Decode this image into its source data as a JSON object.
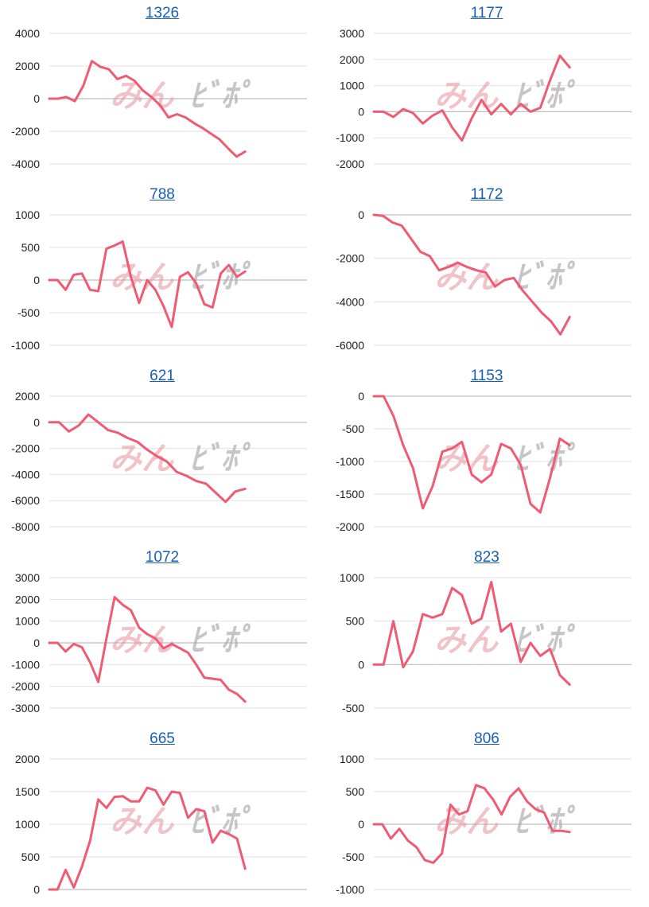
{
  "colors": {
    "line": "#ef5b73",
    "title": "#1a5fb4",
    "grid": "#e2e2e2",
    "zero": "#bdbdbd"
  },
  "watermark": {
    "left_text": "みん",
    "right_text": "ﾋﾞﾎﾟ"
  },
  "chart_data": [
    {
      "type": "line",
      "title": "1326",
      "ylim": [
        -4000,
        4000
      ],
      "ticks": [
        4000,
        2000,
        0,
        -2000,
        -4000
      ],
      "yticks_labels": [
        "4000",
        "2000",
        "0",
        "-2000",
        "-4000"
      ],
      "grid": true,
      "series": [
        {
          "values": [
            0,
            0,
            100,
            -150,
            800,
            2300,
            1950,
            1800,
            1200,
            1400,
            1100,
            500,
            100,
            -400,
            -1150,
            -950,
            -1150,
            -1500,
            -1800,
            -2150,
            -2500,
            -3050,
            -3550,
            -3250
          ]
        }
      ]
    },
    {
      "type": "line",
      "title": "1177",
      "ylim": [
        -2000,
        3000
      ],
      "ticks": [
        3000,
        2000,
        1000,
        0,
        -1000,
        -2000
      ],
      "yticks_labels": [
        "3000",
        "2000",
        "1000",
        "0",
        "-1000",
        "-2000"
      ],
      "grid": true,
      "series": [
        {
          "values": [
            0,
            0,
            -200,
            100,
            -50,
            -450,
            -150,
            50,
            -600,
            -1100,
            -250,
            450,
            -100,
            300,
            -100,
            300,
            0,
            150,
            1200,
            2150,
            1700
          ]
        }
      ]
    },
    {
      "type": "line",
      "title": "788",
      "ylim": [
        -1000,
        1000
      ],
      "ticks": [
        1000,
        500,
        0,
        -500,
        -1000
      ],
      "yticks_labels": [
        "1000",
        "500",
        "0",
        "-500",
        "-1000"
      ],
      "grid": true,
      "series": [
        {
          "values": [
            0,
            0,
            -150,
            80,
            100,
            -150,
            -170,
            480,
            530,
            590,
            50,
            -350,
            0,
            -150,
            -400,
            -720,
            50,
            120,
            -50,
            -370,
            -420,
            100,
            230,
            50,
            130
          ]
        }
      ]
    },
    {
      "type": "line",
      "title": "1172",
      "ylim": [
        -6000,
        0
      ],
      "ticks": [
        0,
        -2000,
        -4000,
        -6000
      ],
      "yticks_labels": [
        "0",
        "-2000",
        "-4000",
        "-6000"
      ],
      "grid": true,
      "series": [
        {
          "values": [
            0,
            -50,
            -350,
            -500,
            -1100,
            -1700,
            -1900,
            -2550,
            -2400,
            -2200,
            -2400,
            -2550,
            -2650,
            -3300,
            -3000,
            -2900,
            -3500,
            -4000,
            -4500,
            -4900,
            -5500,
            -4700
          ]
        }
      ]
    },
    {
      "type": "line",
      "title": "621",
      "ylim": [
        -8000,
        2000
      ],
      "ticks": [
        2000,
        0,
        -2000,
        -4000,
        -6000,
        -8000
      ],
      "yticks_labels": [
        "2000",
        "0",
        "-2000",
        "-4000",
        "-6000",
        "-8000"
      ],
      "grid": true,
      "series": [
        {
          "values": [
            0,
            0,
            -700,
            -250,
            600,
            0,
            -600,
            -800,
            -1200,
            -1500,
            -2100,
            -2600,
            -3000,
            -3800,
            -4100,
            -4500,
            -4700,
            -5400,
            -6100,
            -5300,
            -5100
          ]
        }
      ]
    },
    {
      "type": "line",
      "title": "1153",
      "ylim": [
        -2000,
        0
      ],
      "ticks": [
        0,
        -500,
        -1000,
        -1500,
        -2000
      ],
      "yticks_labels": [
        "0",
        "-500",
        "-1000",
        "-1500",
        "-2000"
      ],
      "grid": true,
      "series": [
        {
          "values": [
            0,
            0,
            -300,
            -750,
            -1100,
            -1720,
            -1380,
            -850,
            -800,
            -700,
            -1200,
            -1320,
            -1200,
            -730,
            -800,
            -1050,
            -1650,
            -1780,
            -1250,
            -650,
            -750
          ]
        }
      ]
    },
    {
      "type": "line",
      "title": "1072",
      "ylim": [
        -3000,
        3000
      ],
      "ticks": [
        3000,
        2000,
        1000,
        0,
        -1000,
        -2000,
        -3000
      ],
      "yticks_labels": [
        "3000",
        "2000",
        "1000",
        "0",
        "-1000",
        "-2000",
        "-3000"
      ],
      "grid": true,
      "series": [
        {
          "values": [
            0,
            0,
            -400,
            -50,
            -200,
            -900,
            -1800,
            200,
            2100,
            1750,
            1500,
            700,
            400,
            200,
            -250,
            -50,
            -250,
            -450,
            -1000,
            -1600,
            -1650,
            -1700,
            -2150,
            -2350,
            -2700
          ]
        }
      ]
    },
    {
      "type": "line",
      "title": "823",
      "ylim": [
        -500,
        1000
      ],
      "ticks": [
        1000,
        500,
        0,
        -500
      ],
      "yticks_labels": [
        "1000",
        "500",
        "0",
        "-500"
      ],
      "grid": true,
      "series": [
        {
          "values": [
            0,
            0,
            500,
            -30,
            150,
            580,
            540,
            580,
            880,
            800,
            470,
            530,
            950,
            380,
            470,
            30,
            250,
            100,
            180,
            -120,
            -230
          ]
        }
      ]
    },
    {
      "type": "line",
      "title": "665",
      "ylim": [
        0,
        2000
      ],
      "ticks": [
        2000,
        1500,
        1000,
        500,
        0
      ],
      "yticks_labels": [
        "2000",
        "1500",
        "1000",
        "500",
        "0"
      ],
      "grid": true,
      "series": [
        {
          "values": [
            0,
            0,
            300,
            30,
            350,
            750,
            1380,
            1250,
            1420,
            1430,
            1350,
            1350,
            1560,
            1520,
            1300,
            1500,
            1480,
            1100,
            1230,
            1200,
            720,
            900,
            850,
            780,
            320
          ]
        }
      ]
    },
    {
      "type": "line",
      "title": "806",
      "ylim": [
        -1000,
        1000
      ],
      "ticks": [
        1000,
        500,
        0,
        -500,
        -1000
      ],
      "yticks_labels": [
        "1000",
        "500",
        "0",
        "-500",
        "-1000"
      ],
      "grid": true,
      "series": [
        {
          "values": [
            0,
            0,
            -220,
            -70,
            -250,
            -350,
            -550,
            -590,
            -450,
            300,
            150,
            200,
            600,
            550,
            380,
            150,
            420,
            550,
            350,
            230,
            180,
            -100,
            -100,
            -120
          ]
        }
      ]
    }
  ]
}
